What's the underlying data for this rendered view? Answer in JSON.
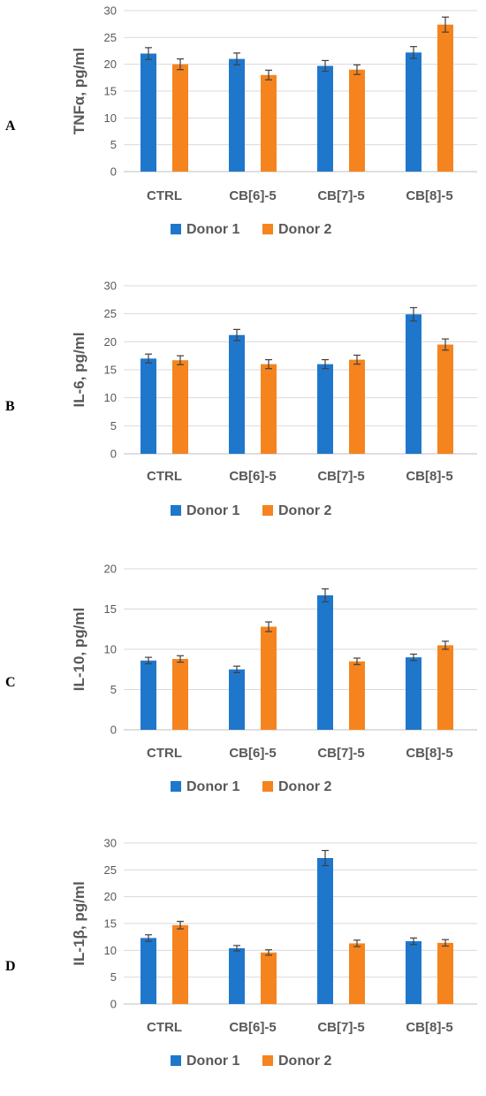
{
  "colors": {
    "donor1": "#1F77CC",
    "donor2": "#F5841F",
    "grid": "#D9D9D9",
    "axis": "#BFBFBF",
    "text": "#595959"
  },
  "chart_data": [
    {
      "panel": "A",
      "type": "bar",
      "ylabel": "TNFα, pg/ml",
      "ylim": [
        0,
        30
      ],
      "yticks": [
        0,
        5,
        10,
        15,
        20,
        25,
        30
      ],
      "categories": [
        "CTRL",
        "CB[6]-5",
        "CB[7]-5",
        "CB[8]-5"
      ],
      "series": [
        {
          "name": "Donor 1",
          "values": [
            22,
            21,
            19.7,
            22.2
          ],
          "errors": [
            1.1,
            1.1,
            1.0,
            1.1
          ]
        },
        {
          "name": "Donor 2",
          "values": [
            20,
            18,
            19,
            27.4
          ],
          "errors": [
            1.0,
            0.9,
            0.9,
            1.4
          ]
        }
      ],
      "grid": true,
      "legend": "bottom"
    },
    {
      "panel": "B",
      "type": "bar",
      "ylabel": "IL-6, pg/ml",
      "ylim": [
        0,
        30
      ],
      "yticks": [
        0,
        5,
        10,
        15,
        20,
        25,
        30
      ],
      "categories": [
        "CTRL",
        "CB[6]-5",
        "CB[7]-5",
        "CB[8]-5"
      ],
      "series": [
        {
          "name": "Donor 1",
          "values": [
            17,
            21.2,
            16,
            24.9
          ],
          "errors": [
            0.8,
            1.0,
            0.8,
            1.2
          ]
        },
        {
          "name": "Donor 2",
          "values": [
            16.7,
            16,
            16.8,
            19.5
          ],
          "errors": [
            0.8,
            0.8,
            0.8,
            1.0
          ]
        }
      ],
      "grid": true,
      "legend": "bottom"
    },
    {
      "panel": "C",
      "type": "bar",
      "ylabel": "IL-10, pg/ml",
      "ylim": [
        0,
        20
      ],
      "yticks": [
        0,
        5,
        10,
        15,
        20
      ],
      "categories": [
        "CTRL",
        "CB[6]-5",
        "CB[7]-5",
        "CB[8]-5"
      ],
      "series": [
        {
          "name": "Donor 1",
          "values": [
            8.6,
            7.5,
            16.7,
            9.0
          ],
          "errors": [
            0.4,
            0.4,
            0.8,
            0.4
          ]
        },
        {
          "name": "Donor 2",
          "values": [
            8.8,
            12.8,
            8.5,
            10.5
          ],
          "errors": [
            0.4,
            0.6,
            0.4,
            0.5
          ]
        }
      ],
      "grid": true,
      "legend": "bottom"
    },
    {
      "panel": "D",
      "type": "bar",
      "ylabel": "IL-1β, pg/ml",
      "ylim": [
        0,
        30
      ],
      "yticks": [
        0,
        5,
        10,
        15,
        20,
        25,
        30
      ],
      "categories": [
        "CTRL",
        "CB[6]-5",
        "CB[7]-5",
        "CB[8]-5"
      ],
      "series": [
        {
          "name": "Donor 1",
          "values": [
            12.3,
            10.4,
            27.2,
            11.7
          ],
          "errors": [
            0.6,
            0.5,
            1.4,
            0.6
          ]
        },
        {
          "name": "Donor 2",
          "values": [
            14.7,
            9.6,
            11.3,
            11.4
          ],
          "errors": [
            0.7,
            0.5,
            0.6,
            0.6
          ]
        }
      ],
      "grid": true,
      "legend": "bottom"
    }
  ]
}
